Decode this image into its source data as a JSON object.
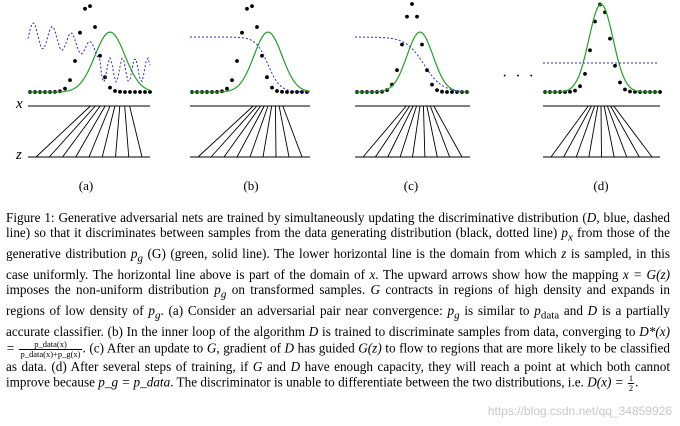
{
  "figure": {
    "axis_labels": {
      "x": "x",
      "z": "z"
    },
    "panels": [
      {
        "label": "(a)",
        "discriminator": "oscillating"
      },
      {
        "label": "(b)",
        "discriminator": "sigmoid"
      },
      {
        "label": "(c)",
        "discriminator": "sigmoid-smoother"
      },
      {
        "label": "(d)",
        "discriminator": "flat-half"
      }
    ],
    "ellipsis": "· · ·",
    "colors": {
      "data_distribution": "#000000",
      "generative_distribution": "#22a022",
      "discriminator": "#2a2ad8",
      "axis_lines": "#000000"
    }
  },
  "caption": {
    "s1": "Figure 1: Generative adversarial nets are trained by simultaneously updating the discriminative distribution (",
    "s2": ", blue, dashed line) so that it discriminates between samples from the data generating distribution (black, dotted line) ",
    "s3": " from those of the generative distribution ",
    "s4": " (G) (green, solid line). The lower horizontal line is the domain from which ",
    "s5": " is sampled, in this case uniformly. The horizontal line above is part of the domain of ",
    "s6": ". The upward arrows show how the mapping ",
    "s7": " imposes the non-uniform distribution ",
    "s8": " on transformed samples. ",
    "s9": " contracts in regions of high density and expands in regions of low density of ",
    "s10": ". (a) Consider an adversarial pair near convergence: ",
    "s11": " is similar to ",
    "s12": " and ",
    "s13": " is a partially accurate classifier. (b) In the inner loop of the algorithm ",
    "s14": " is trained to discriminate samples from data, converging to ",
    "s15": ". (c) After an update to ",
    "s16": ", gradient of ",
    "s17": " has guided ",
    "s18": " to flow to regions that are more likely to be classified as data. (d) After several steps of training, if ",
    "s19": " and ",
    "s20": " have enough capacity, they will reach a point at which both cannot improve because ",
    "s21": ". The discriminator is unable to differentiate between the two distributions, i.e. ",
    "s22": "."
  },
  "math": {
    "D": "D",
    "G": "G",
    "p_x": "p",
    "p_x_sub": "x",
    "p_g": "p",
    "p_g_sub": "g",
    "p_data": "p",
    "p_data_sub": "data",
    "z": "z",
    "x": "x",
    "mapping": "x = G(z)",
    "Dstar_lhs": "D*(x) =",
    "frac_num": "p_data(x)",
    "frac_den": "p_data(x)+p_g(x)",
    "Gz": "G(z)",
    "pg_eq_pdata": "p_g = p_data",
    "Dx_half_lhs": "D(x) =",
    "half_num": "1",
    "half_den": "2"
  },
  "watermark": "https://blog.csdn.net/qq_34859926"
}
